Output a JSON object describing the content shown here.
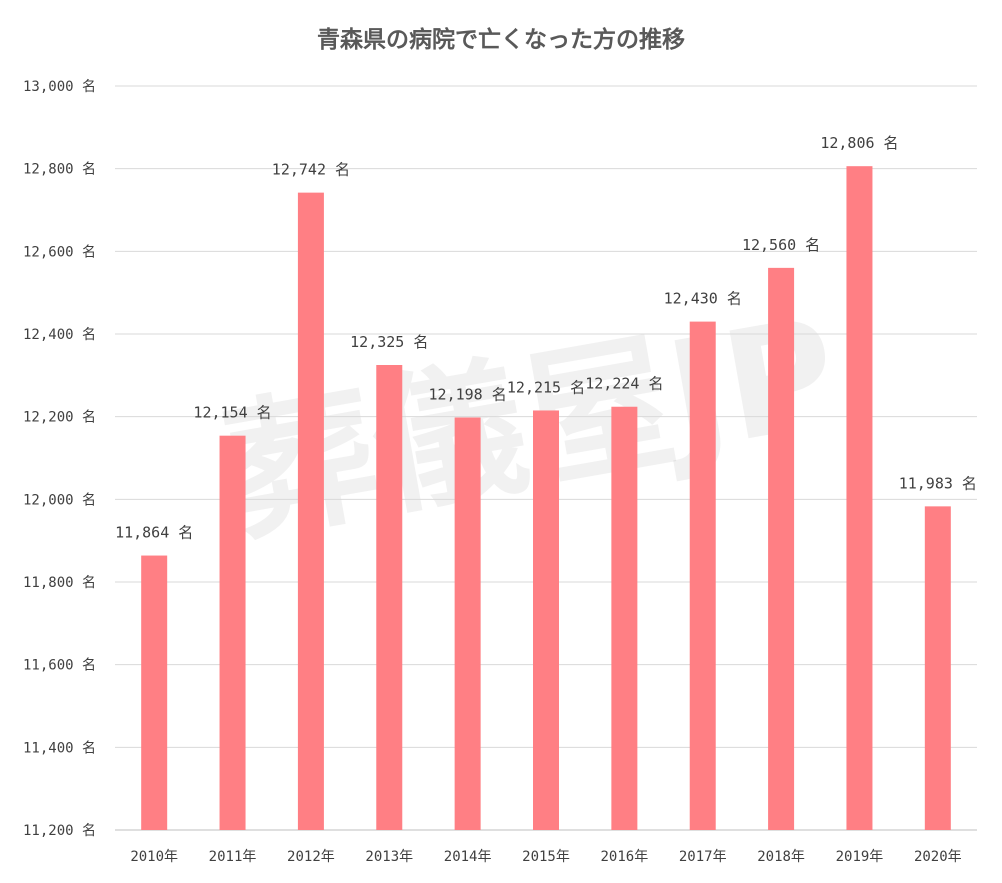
{
  "chart_data": {
    "type": "bar",
    "title": "青森県の病院で亡くなった方の推移",
    "categories": [
      "2010年",
      "2011年",
      "2012年",
      "2013年",
      "2014年",
      "2015年",
      "2016年",
      "2017年",
      "2018年",
      "2019年",
      "2020年"
    ],
    "values": [
      11864,
      12154,
      12742,
      12325,
      12198,
      12215,
      12224,
      12430,
      12560,
      12806,
      11983
    ],
    "data_labels": [
      "11,864 名",
      "12,154 名",
      "12,742 名",
      "12,325 名",
      "12,198 名",
      "12,215 名",
      "12,224 名",
      "12,430 名",
      "12,560 名",
      "12,806 名",
      "11,983 名"
    ],
    "y_ticks": [
      11200,
      11400,
      11600,
      11800,
      12000,
      12200,
      12400,
      12600,
      12800,
      13000
    ],
    "y_tick_labels": [
      "11,200 名",
      "11,400 名",
      "11,600 名",
      "11,800 名",
      "12,000 名",
      "12,200 名",
      "12,400 名",
      "12,600 名",
      "12,800 名",
      "13,000 名"
    ],
    "ylim": [
      11200,
      13000
    ],
    "xlabel": "",
    "ylabel": "",
    "grid": true,
    "bar_color": "#ff7f84"
  },
  "watermark": {
    "text": "葬儀屋JP"
  }
}
